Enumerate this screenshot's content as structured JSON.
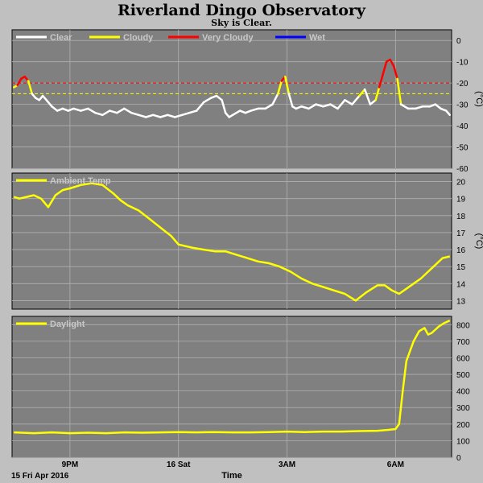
{
  "title": "Riverland Dingo Observatory",
  "subtitle": "Sky is Clear.",
  "colors": {
    "background": "#c0c0c0",
    "panel": "#808080",
    "grid": "#b0b0b0",
    "clear": "#ffffff",
    "cloudy": "#ffff00",
    "very_cloudy": "#ff0000",
    "wet": "#0000ff"
  },
  "x_axis": {
    "label": "Time",
    "date_label": "15 Fri Apr 2016",
    "ticks": [
      {
        "label": "9PM",
        "hour": 21
      },
      {
        "label": "16 Sat",
        "hour": 24
      },
      {
        "label": "3AM",
        "hour": 27
      },
      {
        "label": "6AM",
        "hour": 30
      }
    ],
    "range_hours": [
      19.4,
      31.55
    ]
  },
  "chart_data": [
    {
      "type": "line",
      "name": "sky",
      "ylabel": "(°C)",
      "ylim": [
        -60,
        5
      ],
      "yticks": [
        0,
        -10,
        -20,
        -30,
        -40,
        -50,
        -60
      ],
      "legend": [
        {
          "label": "Clear",
          "color": "#ffffff"
        },
        {
          "label": "Cloudy",
          "color": "#ffff00"
        },
        {
          "label": "Very Cloudy",
          "color": "#ff0000"
        },
        {
          "label": "Wet",
          "color": "#0000ff"
        }
      ],
      "thresholds": [
        {
          "value": -20,
          "color": "#ff0000"
        },
        {
          "value": -25,
          "color": "#ffff00"
        }
      ],
      "cloudy_limit": -25,
      "very_cloudy_limit": -20,
      "series": {
        "x": [
          19.45,
          19.55,
          19.65,
          19.75,
          19.85,
          19.95,
          20.05,
          20.15,
          20.25,
          20.35,
          20.5,
          20.65,
          20.8,
          20.95,
          21.1,
          21.3,
          21.5,
          21.7,
          21.9,
          22.1,
          22.3,
          22.5,
          22.7,
          22.9,
          23.1,
          23.3,
          23.5,
          23.7,
          23.9,
          24.1,
          24.3,
          24.5,
          24.7,
          24.9,
          25.05,
          25.2,
          25.3,
          25.4,
          25.5,
          25.6,
          25.7,
          25.85,
          26.0,
          26.2,
          26.4,
          26.6,
          26.75,
          26.85,
          26.95,
          27.05,
          27.15,
          27.25,
          27.4,
          27.6,
          27.8,
          28.0,
          28.2,
          28.4,
          28.6,
          28.8,
          29.0,
          29.15,
          29.3,
          29.45,
          29.55,
          29.65,
          29.75,
          29.85,
          29.95,
          30.05,
          30.15,
          30.35,
          30.55,
          30.75,
          30.95,
          31.1,
          31.25,
          31.4,
          31.5
        ],
        "y": [
          -22,
          -21,
          -18,
          -17,
          -19,
          -25,
          -27,
          -28,
          -26,
          -28,
          -31,
          -33,
          -32,
          -33,
          -32,
          -33,
          -32,
          -34,
          -35,
          -33,
          -34,
          -32,
          -34,
          -35,
          -36,
          -35,
          -36,
          -35,
          -36,
          -35,
          -34,
          -33,
          -29,
          -27,
          -26,
          -28,
          -34,
          -36,
          -35,
          -34,
          -33,
          -34,
          -33,
          -32,
          -32,
          -30,
          -25,
          -19,
          -17,
          -25,
          -31,
          -32,
          -31,
          -32,
          -30,
          -31,
          -30,
          -32,
          -28,
          -30,
          -26,
          -23,
          -30,
          -28,
          -22,
          -16,
          -10,
          -9,
          -12,
          -18,
          -30,
          -32,
          -32,
          -31,
          -31,
          -30,
          -32,
          -33,
          -35
        ]
      }
    },
    {
      "type": "line",
      "name": "Ambient Temp",
      "ylabel": "(°C)",
      "ylim": [
        12.5,
        20.5
      ],
      "yticks": [
        20,
        19,
        18,
        17,
        16,
        15,
        14,
        13
      ],
      "legend": [
        {
          "label": "Ambient Temp",
          "color": "#ffff00"
        }
      ],
      "series": {
        "x": [
          19.45,
          19.6,
          19.8,
          20.0,
          20.2,
          20.4,
          20.6,
          20.8,
          21.0,
          21.3,
          21.6,
          21.9,
          22.2,
          22.4,
          22.6,
          22.9,
          23.2,
          23.5,
          23.8,
          24.0,
          24.2,
          24.4,
          24.7,
          25.0,
          25.3,
          25.6,
          25.9,
          26.2,
          26.5,
          26.8,
          27.1,
          27.4,
          27.7,
          28.0,
          28.3,
          28.6,
          28.9,
          29.2,
          29.5,
          29.7,
          29.9,
          30.1,
          30.3,
          30.5,
          30.7,
          30.9,
          31.1,
          31.3,
          31.5
        ],
        "y": [
          19.1,
          19.0,
          19.1,
          19.2,
          19.0,
          18.5,
          19.2,
          19.5,
          19.6,
          19.8,
          19.9,
          19.8,
          19.3,
          18.9,
          18.6,
          18.3,
          17.8,
          17.3,
          16.8,
          16.3,
          16.2,
          16.1,
          16.0,
          15.9,
          15.9,
          15.7,
          15.5,
          15.3,
          15.2,
          15.0,
          14.7,
          14.3,
          14.0,
          13.8,
          13.6,
          13.4,
          13.0,
          13.5,
          13.9,
          13.9,
          13.6,
          13.4,
          13.7,
          14.0,
          14.3,
          14.7,
          15.1,
          15.5,
          15.6
        ]
      }
    },
    {
      "type": "line",
      "name": "Daylight",
      "ylim": [
        0,
        850
      ],
      "yticks": [
        800,
        700,
        600,
        500,
        400,
        300,
        200,
        100,
        0
      ],
      "legend": [
        {
          "label": "Daylight",
          "color": "#ffff00"
        }
      ],
      "series": {
        "x": [
          19.45,
          20.0,
          20.5,
          21.0,
          21.5,
          22.0,
          22.5,
          23.0,
          23.5,
          24.0,
          24.5,
          25.0,
          25.5,
          26.0,
          26.5,
          27.0,
          27.5,
          28.0,
          28.5,
          29.0,
          29.5,
          29.8,
          30.0,
          30.1,
          30.2,
          30.3,
          30.4,
          30.5,
          30.65,
          30.8,
          30.9,
          31.0,
          31.1,
          31.2,
          31.35,
          31.5
        ],
        "y": [
          150,
          145,
          150,
          145,
          148,
          145,
          150,
          148,
          150,
          152,
          150,
          152,
          150,
          150,
          152,
          155,
          152,
          155,
          155,
          158,
          160,
          165,
          170,
          200,
          400,
          580,
          640,
          700,
          760,
          780,
          740,
          750,
          770,
          790,
          810,
          825
        ]
      }
    }
  ]
}
